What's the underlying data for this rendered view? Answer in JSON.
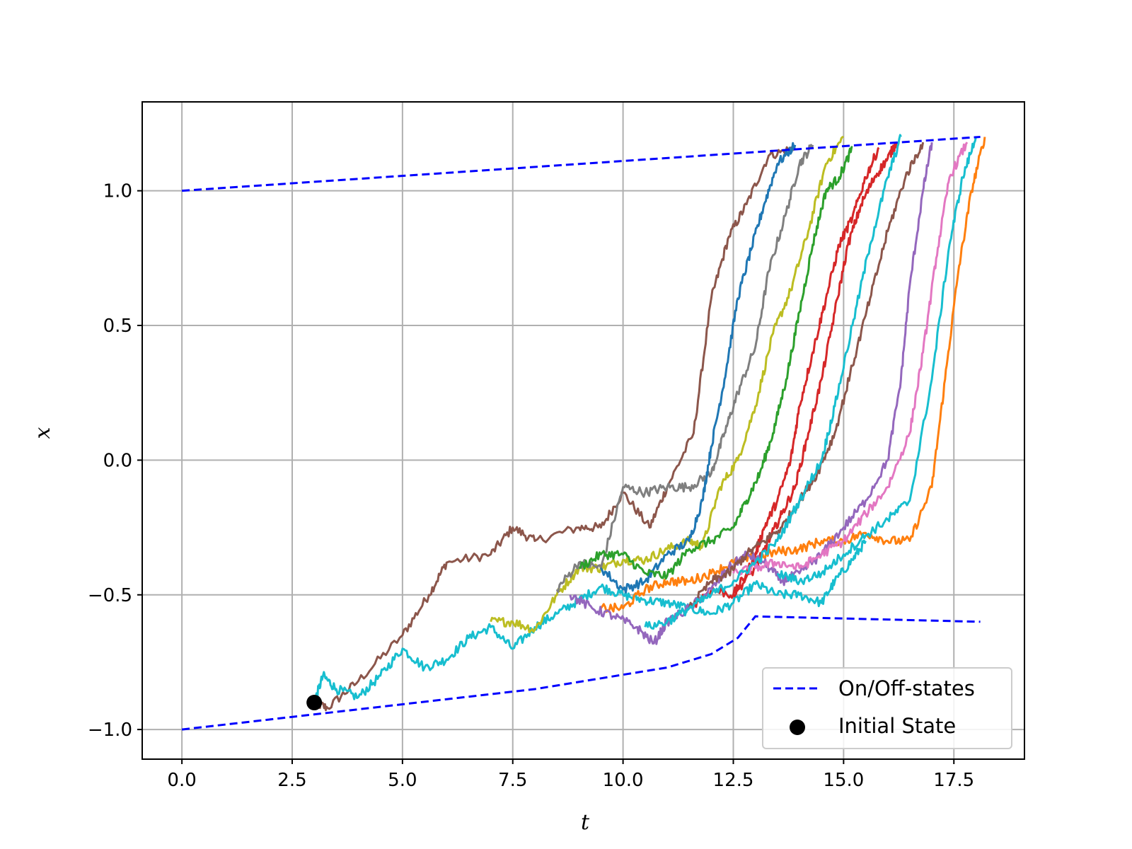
{
  "chart_data": {
    "type": "line",
    "title": "",
    "xlabel": "t",
    "ylabel": "x",
    "xlim": [
      -0.9,
      19.1
    ],
    "ylim": [
      -1.11,
      1.33
    ],
    "grid": true,
    "legend_placement": "bottom-right",
    "x_ticks": [
      0.0,
      2.5,
      5.0,
      7.5,
      10.0,
      12.5,
      15.0,
      17.5
    ],
    "x_tick_labels": [
      "0.0",
      "2.5",
      "5.0",
      "7.5",
      "10.0",
      "12.5",
      "15.0",
      "17.5"
    ],
    "y_ticks": [
      -1.0,
      -0.5,
      0.0,
      0.5,
      1.0
    ],
    "y_tick_labels": [
      "−1.0",
      "−0.5",
      "0.0",
      "0.5",
      "1.0"
    ],
    "legend": [
      {
        "label": "On/Off-states",
        "marker": "dashed-line",
        "color": "#0000ff"
      },
      {
        "label": "Initial State",
        "marker": "dot",
        "color": "#000000"
      }
    ],
    "initial_state": {
      "x": 3.0,
      "y": -0.9,
      "color": "#000000"
    },
    "boundaries": [
      {
        "style": "dashed",
        "color": "#0000ff",
        "x": [
          0.0,
          4.0,
          8.0,
          11.0,
          12.0,
          12.6,
          12.9,
          13.0,
          18.1
        ],
        "y": [
          -1.0,
          -0.925,
          -0.85,
          -0.77,
          -0.72,
          -0.66,
          -0.6,
          -0.58,
          -0.6
        ]
      },
      {
        "style": "dashed",
        "color": "#0000ff",
        "x": [
          0.0,
          18.1
        ],
        "y": [
          1.0,
          1.2
        ]
      }
    ],
    "series": [
      {
        "color": "#8c564b",
        "x": [
          3.0,
          3.3,
          4.0,
          5.0,
          5.6,
          6.0,
          7.0,
          7.5,
          8.0,
          9.0,
          9.5,
          10.0,
          10.6,
          11.0,
          11.6,
          12.0,
          12.4,
          12.8,
          13.3,
          13.9
        ],
        "y": [
          -0.9,
          -0.92,
          -0.82,
          -0.65,
          -0.5,
          -0.38,
          -0.35,
          -0.25,
          -0.3,
          -0.25,
          -0.25,
          -0.12,
          -0.25,
          -0.1,
          0.1,
          0.6,
          0.83,
          0.95,
          1.13,
          1.16
        ]
      },
      {
        "color": "#17becf",
        "x": [
          3.0,
          3.2,
          3.5,
          4.0,
          4.5,
          5.0,
          5.5,
          6.0,
          6.5,
          7.0,
          7.5,
          8.0,
          8.5,
          9.0,
          9.5,
          10.0,
          10.5,
          11.0,
          11.5,
          12.0,
          12.5,
          13.0,
          13.5,
          14.0,
          14.5,
          14.8,
          15.2,
          15.5
        ],
        "y": [
          -0.9,
          -0.8,
          -0.85,
          -0.88,
          -0.8,
          -0.7,
          -0.77,
          -0.74,
          -0.66,
          -0.62,
          -0.7,
          -0.62,
          -0.57,
          -0.52,
          -0.47,
          -0.5,
          -0.52,
          -0.53,
          -0.55,
          -0.57,
          -0.53,
          -0.46,
          -0.5,
          -0.5,
          -0.53,
          -0.45,
          -0.37,
          -0.3
        ]
      },
      {
        "color": "#bcbd22",
        "x": [
          7.0,
          7.5,
          8.0,
          8.5,
          9.0,
          9.5,
          10.0,
          10.5,
          11.0,
          11.5,
          11.8,
          12.2,
          12.6,
          13.0,
          13.4,
          13.8,
          14.2,
          14.6,
          15.0
        ],
        "y": [
          -0.6,
          -0.6,
          -0.63,
          -0.5,
          -0.4,
          -0.4,
          -0.37,
          -0.37,
          -0.33,
          -0.3,
          -0.32,
          -0.1,
          0.0,
          0.2,
          0.47,
          0.63,
          0.85,
          1.1,
          1.2
        ]
      },
      {
        "color": "#7f7f7f",
        "x": [
          8.5,
          9.0,
          9.5,
          10.0,
          10.5,
          11.0,
          11.5,
          12.0,
          12.3,
          12.6,
          13.0,
          13.3,
          13.7,
          14.0,
          14.3
        ],
        "y": [
          -0.48,
          -0.38,
          -0.4,
          -0.1,
          -0.12,
          -0.1,
          -0.1,
          -0.05,
          0.1,
          0.25,
          0.42,
          0.7,
          0.92,
          1.1,
          1.17
        ]
      },
      {
        "color": "#1f77b4",
        "x": [
          9.5,
          10.0,
          10.5,
          11.0,
          11.5,
          11.8,
          12.0,
          12.3,
          12.6,
          12.9,
          13.2,
          13.5,
          13.9
        ],
        "y": [
          -0.4,
          -0.48,
          -0.45,
          -0.35,
          -0.3,
          -0.15,
          0.05,
          0.3,
          0.6,
          0.78,
          0.95,
          1.1,
          1.17
        ]
      },
      {
        "color": "#2ca02c",
        "x": [
          9.0,
          9.5,
          10.0,
          10.5,
          11.0,
          11.5,
          12.0,
          12.5,
          12.8,
          13.1,
          13.4,
          13.7,
          14.0,
          14.3,
          14.6,
          14.9,
          15.2
        ],
        "y": [
          -0.4,
          -0.35,
          -0.35,
          -0.42,
          -0.43,
          -0.33,
          -0.3,
          -0.25,
          -0.15,
          -0.05,
          0.1,
          0.3,
          0.55,
          0.8,
          1.0,
          1.05,
          1.16
        ]
      },
      {
        "color": "#ff7f0e",
        "x": [
          9.5,
          10.0,
          10.5,
          11.0,
          11.5,
          12.0,
          12.5,
          13.0,
          13.5,
          14.0,
          14.5,
          15.0,
          15.5,
          16.0,
          16.5,
          17.0,
          17.3,
          17.6,
          17.9,
          18.2
        ],
        "y": [
          -0.55,
          -0.55,
          -0.48,
          -0.45,
          -0.45,
          -0.42,
          -0.38,
          -0.36,
          -0.34,
          -0.33,
          -0.3,
          -0.3,
          -0.27,
          -0.3,
          -0.3,
          -0.1,
          0.3,
          0.7,
          1.0,
          1.2
        ]
      },
      {
        "color": "#d62728",
        "x": [
          11.5,
          12.0,
          12.5,
          12.8,
          13.0,
          13.2,
          13.5,
          13.8,
          14.0,
          14.3,
          14.6,
          14.9,
          15.2,
          15.5,
          15.8
        ],
        "y": [
          -0.55,
          -0.48,
          -0.5,
          -0.42,
          -0.35,
          -0.25,
          -0.15,
          0.0,
          0.2,
          0.4,
          0.6,
          0.8,
          0.9,
          1.05,
          1.16
        ]
      },
      {
        "color": "#d62728",
        "x": [
          12.5,
          13.0,
          13.3,
          13.6,
          13.9,
          14.2,
          14.5,
          14.8,
          15.1,
          15.4,
          15.7,
          16.0,
          16.2
        ],
        "y": [
          -0.5,
          -0.4,
          -0.3,
          -0.2,
          -0.1,
          0.1,
          0.3,
          0.55,
          0.8,
          0.95,
          1.05,
          1.12,
          1.18
        ]
      },
      {
        "color": "#9467bd",
        "x": [
          8.8,
          9.3,
          9.8,
          10.3,
          10.7,
          11.0,
          11.5,
          12.0,
          12.4,
          12.8,
          13.2,
          13.6,
          14.0,
          14.5,
          15.0,
          15.5,
          16.0,
          16.3,
          16.5,
          16.8,
          17.0
        ],
        "y": [
          -0.5,
          -0.55,
          -0.58,
          -0.62,
          -0.68,
          -0.6,
          -0.55,
          -0.48,
          -0.4,
          -0.35,
          -0.38,
          -0.45,
          -0.42,
          -0.35,
          -0.25,
          -0.15,
          0.0,
          0.3,
          0.65,
          1.0,
          1.18
        ]
      },
      {
        "color": "#e377c2",
        "x": [
          12.5,
          13.0,
          13.5,
          14.0,
          14.5,
          15.0,
          15.5,
          16.0,
          16.5,
          16.8,
          17.1,
          17.4,
          17.8
        ],
        "y": [
          -0.42,
          -0.4,
          -0.38,
          -0.4,
          -0.35,
          -0.3,
          -0.2,
          -0.1,
          0.1,
          0.4,
          0.75,
          1.05,
          1.18
        ]
      },
      {
        "color": "#8c564b",
        "x": [
          11.5,
          12.0,
          12.4,
          12.8,
          13.2,
          13.6,
          14.0,
          14.4,
          14.8,
          15.2,
          15.6,
          16.0,
          16.4,
          16.8
        ],
        "y": [
          -0.55,
          -0.45,
          -0.42,
          -0.35,
          -0.3,
          -0.25,
          -0.15,
          -0.05,
          0.1,
          0.35,
          0.6,
          0.85,
          1.05,
          1.18
        ]
      },
      {
        "color": "#17becf",
        "x": [
          10.5,
          11.0,
          11.5,
          12.0,
          12.5,
          13.0,
          13.5,
          14.0,
          14.5,
          14.8,
          15.2,
          15.6,
          16.0,
          16.3
        ],
        "y": [
          -0.62,
          -0.6,
          -0.55,
          -0.5,
          -0.45,
          -0.38,
          -0.3,
          -0.15,
          0.0,
          0.2,
          0.5,
          0.8,
          1.05,
          1.2
        ]
      },
      {
        "color": "#17becf",
        "x": [
          13.5,
          14.0,
          14.5,
          15.0,
          15.5,
          16.0,
          16.5,
          17.0,
          17.4,
          17.7,
          18.0
        ],
        "y": [
          -0.42,
          -0.45,
          -0.42,
          -0.35,
          -0.28,
          -0.22,
          -0.15,
          0.3,
          0.8,
          1.05,
          1.2
        ]
      }
    ]
  }
}
